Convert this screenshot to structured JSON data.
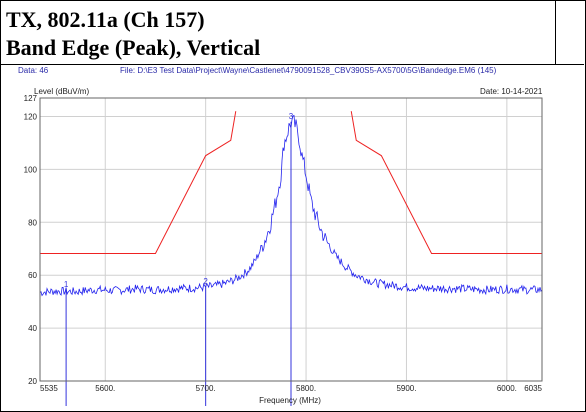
{
  "title": {
    "line1": "TX, 802.11a (Ch 157)",
    "line2": "Band Edge (Peak), Vertical"
  },
  "header": {
    "data_label": "Data:",
    "data_value": "46",
    "file_label": "File:",
    "file_value": "D:\\E3 Test Data\\Project\\Wayne\\Castlenet\\4790091528_CBV390S5-AX5700\\5G\\Bandedge.EM6",
    "file_suffix": "(145)",
    "date_label": "Date:",
    "date_value": "10-14-2021"
  },
  "colors": {
    "trace": "#2222ee",
    "limit": "#ee2222",
    "markers": "#3333dd",
    "grid": "#d0d0d0"
  },
  "chart_data": {
    "type": "line",
    "ylabel": "Level (dBuV/m)",
    "xlabel": "Frequency (MHz)",
    "xlim": [
      5535,
      6035
    ],
    "ylim": [
      20,
      127
    ],
    "x_ticks": [
      {
        "value": 5535,
        "label": "5535"
      },
      {
        "value": 5600,
        "label": "5600."
      },
      {
        "value": 5700,
        "label": "5700."
      },
      {
        "value": 5800,
        "label": "5800."
      },
      {
        "value": 5900,
        "label": "5900."
      },
      {
        "value": 6000,
        "label": "6000."
      },
      {
        "value": 6035,
        "label": "6035"
      }
    ],
    "y_ticks": [
      {
        "value": 20,
        "label": "20"
      },
      {
        "value": 40,
        "label": "40"
      },
      {
        "value": 60,
        "label": "60"
      },
      {
        "value": 80,
        "label": "80"
      },
      {
        "value": 100,
        "label": "100"
      },
      {
        "value": 120,
        "label": "120"
      },
      {
        "value": 127,
        "label": "127"
      }
    ],
    "grid": true,
    "series": [
      {
        "role": "limit-lower",
        "x": [
          5535,
          5650,
          5700,
          5725,
          5730
        ],
        "y": [
          68.2,
          68.2,
          105.2,
          111,
          122
        ]
      },
      {
        "role": "limit-upper",
        "x": [
          5845,
          5850,
          5875,
          5925,
          6035
        ],
        "y": [
          122,
          111,
          105.2,
          68.2,
          68.2
        ]
      },
      {
        "role": "measured-trace",
        "x": [
          5535,
          5550,
          5570,
          5590,
          5610,
          5630,
          5650,
          5670,
          5690,
          5700,
          5710,
          5720,
          5730,
          5740,
          5745,
          5750,
          5755,
          5760,
          5765,
          5770,
          5775,
          5778,
          5780,
          5783,
          5786,
          5788,
          5790,
          5793,
          5796,
          5800,
          5805,
          5810,
          5815,
          5820,
          5825,
          5830,
          5840,
          5850,
          5860,
          5870,
          5880,
          5890,
          5900,
          5920,
          5940,
          5960,
          5980,
          6000,
          6020,
          6035
        ],
        "y": [
          53.5,
          54,
          53.8,
          54.5,
          54.2,
          54.8,
          54.5,
          55,
          55.2,
          55.5,
          56,
          57,
          58.5,
          61,
          63,
          66,
          70,
          74,
          80,
          88,
          98,
          110,
          112,
          116,
          118,
          117.5,
          116,
          112,
          105,
          98,
          88,
          82,
          77,
          73,
          70,
          67,
          63,
          60,
          58.5,
          57,
          56.5,
          56,
          55.5,
          55,
          55,
          54.8,
          54.5,
          54.8,
          54.5,
          54.5
        ]
      }
    ],
    "markers": [
      {
        "label": "1",
        "x": 5561,
        "y": 54.5
      },
      {
        "label": "2",
        "x": 5700,
        "y": 55.6
      },
      {
        "label": "3",
        "x": 5785,
        "y": 118
      }
    ]
  }
}
